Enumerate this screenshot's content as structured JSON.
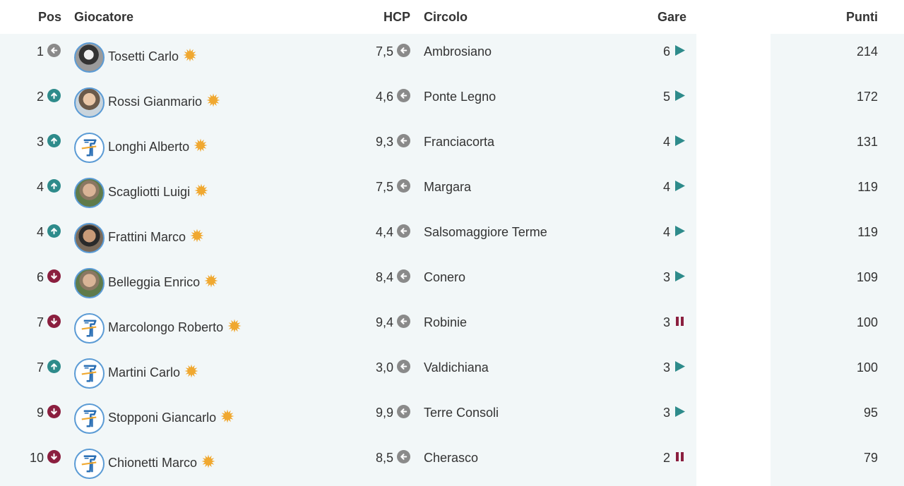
{
  "table": {
    "headers": {
      "pos": "Pos",
      "player": "Giocatore",
      "hcp": "HCP",
      "club": "Circolo",
      "races": "Gare",
      "points": "Punti"
    },
    "rows": [
      {
        "pos": "1",
        "trend": "same",
        "avatar": "photo-bw",
        "name": "Tosetti Carlo",
        "hcp": "7,5",
        "club": "Ambrosiano",
        "races": "6",
        "status": "play",
        "points": "214"
      },
      {
        "pos": "2",
        "trend": "up",
        "avatar": "photo",
        "name": "Rossi Gianmario",
        "hcp": "4,6",
        "club": "Ponte Legno",
        "races": "5",
        "status": "play",
        "points": "172"
      },
      {
        "pos": "3",
        "trend": "up",
        "avatar": "logo",
        "name": "Longhi Alberto",
        "hcp": "9,3",
        "club": "Franciacorta",
        "races": "4",
        "status": "play",
        "points": "131"
      },
      {
        "pos": "4",
        "trend": "up",
        "avatar": "photo-green",
        "name": "Scagliotti Luigi",
        "hcp": "7,5",
        "club": "Margara",
        "races": "4",
        "status": "play",
        "points": "119"
      },
      {
        "pos": "4",
        "trend": "up",
        "avatar": "photo-dark",
        "name": "Frattini Marco",
        "hcp": "4,4",
        "club": "Salsomaggiore Terme",
        "races": "4",
        "status": "play",
        "points": "119"
      },
      {
        "pos": "6",
        "trend": "down",
        "avatar": "photo-green",
        "name": "Belleggia Enrico",
        "hcp": "8,4",
        "club": "Conero",
        "races": "3",
        "status": "play",
        "points": "109"
      },
      {
        "pos": "7",
        "trend": "down",
        "avatar": "logo",
        "name": "Marcolongo Roberto",
        "hcp": "9,4",
        "club": "Robinie",
        "races": "3",
        "status": "pause",
        "points": "100"
      },
      {
        "pos": "7",
        "trend": "up",
        "avatar": "logo",
        "name": "Martini Carlo",
        "hcp": "3,0",
        "club": "Valdichiana",
        "races": "3",
        "status": "play",
        "points": "100"
      },
      {
        "pos": "9",
        "trend": "down",
        "avatar": "logo",
        "name": "Stopponi Giancarlo",
        "hcp": "9,9",
        "club": "Terre Consoli",
        "races": "3",
        "status": "play",
        "points": "95"
      },
      {
        "pos": "10",
        "trend": "down",
        "avatar": "logo",
        "name": "Chionetti Marco",
        "hcp": "8,5",
        "club": "Cherasco",
        "races": "2",
        "status": "pause",
        "points": "79"
      }
    ]
  },
  "colors": {
    "row_bg": "#f2f7f8",
    "trend_up": "#2e8b8b",
    "trend_down": "#8b1f3f",
    "trend_same": "#8a8a8a",
    "play": "#2e8b8b",
    "pause": "#8b1f3f",
    "star": "#f0a830",
    "avatar_border": "#5b9bd5"
  },
  "icons": {
    "trend_same": "arrow-left-circle-icon",
    "trend_up": "arrow-up-circle-icon",
    "trend_down": "arrow-down-circle-icon",
    "hcp": "arrow-left-circle-icon",
    "play": "play-triangle-icon",
    "pause": "pause-bars-icon",
    "star": "sun-star-icon",
    "logo": "golf-club-logo-icon"
  }
}
